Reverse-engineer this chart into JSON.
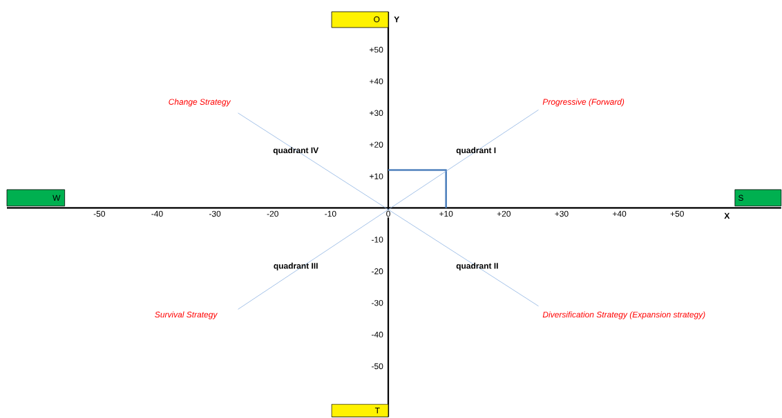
{
  "chart_data": {
    "type": "line",
    "xlabel": "X",
    "ylabel": "Y",
    "xlim": [
      -66,
      68
    ],
    "ylim": [
      -66,
      62
    ],
    "xticks": [
      -50,
      -40,
      -30,
      -20,
      -10,
      0,
      {
        "value": 10,
        "label": "+10"
      },
      {
        "value": 20,
        "label": "+20"
      },
      {
        "value": 30,
        "label": "+30"
      },
      {
        "value": 40,
        "label": "+40"
      },
      {
        "value": 50,
        "label": "+50"
      }
    ],
    "yticks": [
      {
        "value": -50,
        "label": "-50"
      },
      {
        "value": -40,
        "label": "-40"
      },
      {
        "value": -30,
        "label": "-30"
      },
      {
        "value": -20,
        "label": "-20"
      },
      {
        "value": -10,
        "label": "-10"
      },
      {
        "value": 10,
        "label": "+10"
      },
      {
        "value": 20,
        "label": "+20"
      },
      {
        "value": 30,
        "label": "+30"
      },
      {
        "value": 40,
        "label": "+40"
      },
      {
        "value": 50,
        "label": "+50"
      }
    ],
    "series": [
      {
        "color": "#4f81bd",
        "x": [
          0,
          10,
          10
        ],
        "values": [
          12,
          12,
          0
        ]
      },
      {
        "color": "#8db3e2",
        "x": [
          -26,
          26
        ],
        "values": [
          -32,
          31
        ]
      },
      {
        "color": "#8db3e2",
        "x": [
          -26,
          26
        ],
        "values": [
          30,
          -31
        ]
      }
    ],
    "annotations": [
      "Change Strategy",
      "Progressive (Forward)",
      "Survival Strategy",
      "Diversification Strategy (Expansion strategy)",
      "quadrant IV",
      "quadrant I",
      "quadrant III",
      "quadrant II",
      "O",
      "T",
      "W",
      "S"
    ]
  }
}
